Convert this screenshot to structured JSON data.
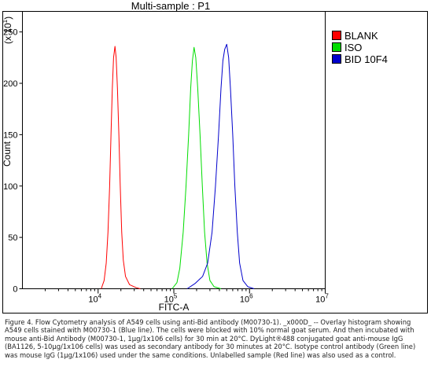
{
  "chart_data": {
    "type": "line",
    "title": "Multi-sample : P1",
    "xlabel": "FITC-A",
    "ylabel": "Count",
    "y_multiplier": "(x 10",
    "y_multiplier_exp": "1",
    "x_scale": "log",
    "xlim": [
      1000,
      10000000
    ],
    "ylim": [
      0,
      270
    ],
    "x_tick_labels": [
      {
        "base": "10",
        "exp": "4",
        "value": 10000
      },
      {
        "base": "10",
        "exp": "5",
        "value": 100000
      },
      {
        "base": "10",
        "exp": "6",
        "value": 1000000
      },
      {
        "base": "10",
        "exp": "7",
        "value": 10000000
      }
    ],
    "y_ticks": [
      0,
      50,
      100,
      150,
      200,
      250
    ],
    "legend_position": "right",
    "series": [
      {
        "name": "BLANK",
        "color": "#ff0000",
        "points": [
          [
            11000,
            0
          ],
          [
            12000,
            8
          ],
          [
            12800,
            25
          ],
          [
            13500,
            55
          ],
          [
            14200,
            100
          ],
          [
            14800,
            150
          ],
          [
            15400,
            195
          ],
          [
            16000,
            225
          ],
          [
            16700,
            236
          ],
          [
            17300,
            225
          ],
          [
            18000,
            195
          ],
          [
            18800,
            150
          ],
          [
            19600,
            100
          ],
          [
            20500,
            55
          ],
          [
            21500,
            28
          ],
          [
            23000,
            12
          ],
          [
            26000,
            4
          ],
          [
            32000,
            1
          ],
          [
            36000,
            0
          ]
        ]
      },
      {
        "name": "ISO",
        "color": "#00dd00",
        "points": [
          [
            95000,
            0
          ],
          [
            110000,
            6
          ],
          [
            120000,
            20
          ],
          [
            133000,
            55
          ],
          [
            145000,
            100
          ],
          [
            157000,
            150
          ],
          [
            167000,
            195
          ],
          [
            176000,
            222
          ],
          [
            185000,
            235
          ],
          [
            195000,
            225
          ],
          [
            207000,
            195
          ],
          [
            222000,
            150
          ],
          [
            238000,
            100
          ],
          [
            255000,
            55
          ],
          [
            275000,
            25
          ],
          [
            300000,
            8
          ],
          [
            340000,
            2
          ],
          [
            420000,
            0
          ]
        ]
      },
      {
        "name": "BID 10F4",
        "color": "#0000cc",
        "points": [
          [
            150000,
            0
          ],
          [
            190000,
            5
          ],
          [
            240000,
            12
          ],
          [
            280000,
            25
          ],
          [
            320000,
            55
          ],
          [
            355000,
            100
          ],
          [
            390000,
            150
          ],
          [
            420000,
            195
          ],
          [
            445000,
            222
          ],
          [
            470000,
            233
          ],
          [
            500000,
            238
          ],
          [
            530000,
            225
          ],
          [
            560000,
            195
          ],
          [
            600000,
            150
          ],
          [
            640000,
            100
          ],
          [
            690000,
            55
          ],
          [
            740000,
            25
          ],
          [
            820000,
            8
          ],
          [
            950000,
            2
          ],
          [
            1150000,
            0
          ]
        ]
      }
    ]
  },
  "caption": "Figure 4. Flow Cytometry analysis of A549 cells using anti-Bid antibody (M00730-1). _x000D_ -- Overlay histogram showing A549 cells stained with M00730-1 (Blue line). The cells were blocked with 10% normal goat serum. And then incubated with mouse anti-Bid Antibody (M00730-1, 1µg/1x106 cells) for 30 min at 20°C. DyLight®488 conjugated goat anti-mouse IgG (BA1126, 5-10µg/1x106 cells) was used as secondary antibody for 30 minutes at 20°C. Isotype control antibody (Green line) was mouse IgG (1µg/1x106) used under the same conditions. Unlabelled sample (Red line) was also used as a control."
}
